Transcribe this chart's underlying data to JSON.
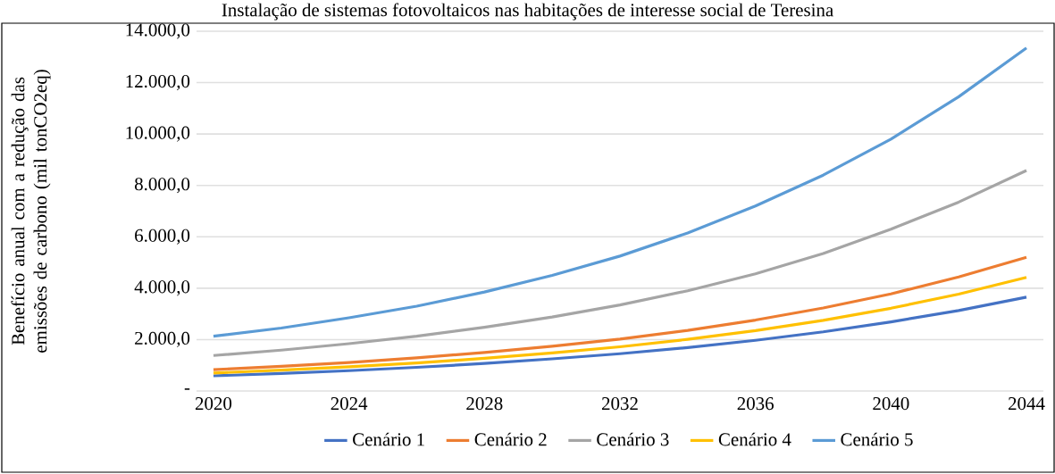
{
  "chart_data": {
    "type": "line",
    "title": "Instalação de sistemas fotovoltaicos nas habitações de interesse social de Teresina",
    "ylabel": "Benefício anual com a redução das emissões de carbono (mil tonCO2eq)",
    "x": [
      2020,
      2022,
      2024,
      2026,
      2028,
      2030,
      2032,
      2034,
      2036,
      2038,
      2040,
      2042,
      2044
    ],
    "xlim": [
      2019.5,
      2044.5
    ],
    "xticks": [
      2020,
      2024,
      2028,
      2032,
      2036,
      2040,
      2044
    ],
    "ylim": [
      0,
      14000
    ],
    "yticks": [
      {
        "value": 0,
        "label": "-"
      },
      {
        "value": 2000,
        "label": "2.000,0"
      },
      {
        "value": 4000,
        "label": "4.000,0"
      },
      {
        "value": 6000,
        "label": "6.000,0"
      },
      {
        "value": 8000,
        "label": "8.000,0"
      },
      {
        "value": 10000,
        "label": "10.000,0"
      },
      {
        "value": 12000,
        "label": "12.000,0"
      },
      {
        "value": 14000,
        "label": "14.000,0"
      }
    ],
    "grid": "y",
    "legend": "bottom",
    "marker": "none",
    "series": [
      {
        "name": "Cenário 1",
        "color": "#4472c4",
        "values": [
          590,
          680,
          790,
          920,
          1070,
          1250,
          1450,
          1690,
          1970,
          2300,
          2690,
          3130,
          3650
        ]
      },
      {
        "name": "Cenário 2",
        "color": "#ed7d31",
        "values": [
          830,
          960,
          1110,
          1290,
          1500,
          1740,
          2020,
          2360,
          2760,
          3230,
          3780,
          4440,
          5200
        ]
      },
      {
        "name": "Cenário 3",
        "color": "#a5a5a5",
        "values": [
          1380,
          1590,
          1840,
          2130,
          2480,
          2880,
          3350,
          3900,
          4560,
          5350,
          6300,
          7350,
          8580
        ]
      },
      {
        "name": "Cenário 4",
        "color": "#ffc000",
        "values": [
          700,
          810,
          940,
          1090,
          1270,
          1480,
          1720,
          2010,
          2350,
          2750,
          3220,
          3770,
          4420
        ]
      },
      {
        "name": "Cenário 5",
        "color": "#5b9bd5",
        "values": [
          2130,
          2450,
          2850,
          3300,
          3850,
          4500,
          5250,
          6150,
          7200,
          8400,
          9800,
          11450,
          13350
        ]
      }
    ]
  }
}
